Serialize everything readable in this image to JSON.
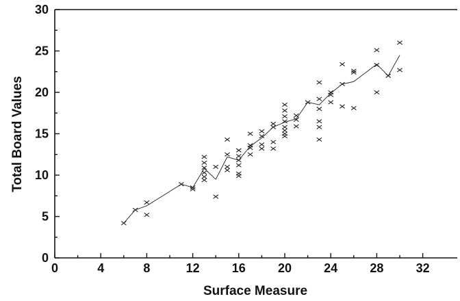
{
  "chart_data": {
    "type": "scatter",
    "title": "",
    "xlabel": "Surface Measure",
    "ylabel": "Total Board Values",
    "xlim": [
      0,
      35
    ],
    "ylim": [
      0,
      30
    ],
    "x_ticks": [
      0,
      4,
      8,
      12,
      16,
      20,
      24,
      28,
      32
    ],
    "y_ticks": [
      0,
      5,
      10,
      15,
      20,
      25,
      30
    ],
    "grid": false,
    "legend": "none",
    "marker": "x",
    "colors": {
      "ink": "#111111",
      "background": "#ffffff"
    },
    "points": [
      [
        6,
        4.2
      ],
      [
        7,
        5.8
      ],
      [
        8,
        6.7
      ],
      [
        8,
        5.2
      ],
      [
        11,
        8.9
      ],
      [
        12,
        8.5
      ],
      [
        12,
        8.3
      ],
      [
        13,
        12.2
      ],
      [
        13,
        11.5
      ],
      [
        13,
        10.9
      ],
      [
        13,
        10.3
      ],
      [
        13,
        9.8
      ],
      [
        13,
        9.4
      ],
      [
        14,
        7.4
      ],
      [
        14,
        11.0
      ],
      [
        15,
        14.3
      ],
      [
        15,
        12.5
      ],
      [
        15,
        11.0
      ],
      [
        15,
        10.6
      ],
      [
        16,
        13.0
      ],
      [
        16,
        12.3
      ],
      [
        16,
        11.8
      ],
      [
        16,
        11.2
      ],
      [
        16,
        10.2
      ],
      [
        16,
        9.9
      ],
      [
        17,
        15.0
      ],
      [
        17,
        13.6
      ],
      [
        17,
        13.3
      ],
      [
        17,
        12.5
      ],
      [
        18,
        15.3
      ],
      [
        18,
        14.7
      ],
      [
        18,
        13.7
      ],
      [
        18,
        13.2
      ],
      [
        19,
        16.2
      ],
      [
        19,
        15.8
      ],
      [
        19,
        14.0
      ],
      [
        19,
        13.2
      ],
      [
        20,
        18.5
      ],
      [
        20,
        17.8
      ],
      [
        20,
        17.1
      ],
      [
        20,
        16.5
      ],
      [
        20,
        15.8
      ],
      [
        20,
        15.4
      ],
      [
        20,
        15.0
      ],
      [
        20,
        14.7
      ],
      [
        21,
        17.2
      ],
      [
        21,
        16.7
      ],
      [
        21,
        15.9
      ],
      [
        22,
        18.8
      ],
      [
        23,
        21.2
      ],
      [
        23,
        19.2
      ],
      [
        23,
        18.0
      ],
      [
        23,
        16.5
      ],
      [
        23,
        15.8
      ],
      [
        23,
        14.3
      ],
      [
        24,
        20.0
      ],
      [
        24,
        19.7
      ],
      [
        24,
        18.8
      ],
      [
        25,
        23.4
      ],
      [
        25,
        21.0
      ],
      [
        25,
        18.3
      ],
      [
        26,
        22.6
      ],
      [
        26,
        22.4
      ],
      [
        26,
        18.1
      ],
      [
        28,
        25.1
      ],
      [
        28,
        23.3
      ],
      [
        28,
        20.0
      ],
      [
        29,
        22.0
      ],
      [
        30,
        26.0
      ],
      [
        30,
        22.7
      ]
    ],
    "trend_line": {
      "x": [
        6,
        7,
        8,
        11,
        12,
        13,
        14,
        15,
        16,
        17,
        18,
        19,
        20,
        21,
        22,
        23,
        24,
        25,
        26,
        28,
        29,
        30
      ],
      "y": [
        4.2,
        5.8,
        6.3,
        8.9,
        8.5,
        10.8,
        9.5,
        12.2,
        11.8,
        13.5,
        14.5,
        15.8,
        16.4,
        16.8,
        18.8,
        18.5,
        19.9,
        21.0,
        21.3,
        23.4,
        22.0,
        24.5
      ]
    }
  }
}
